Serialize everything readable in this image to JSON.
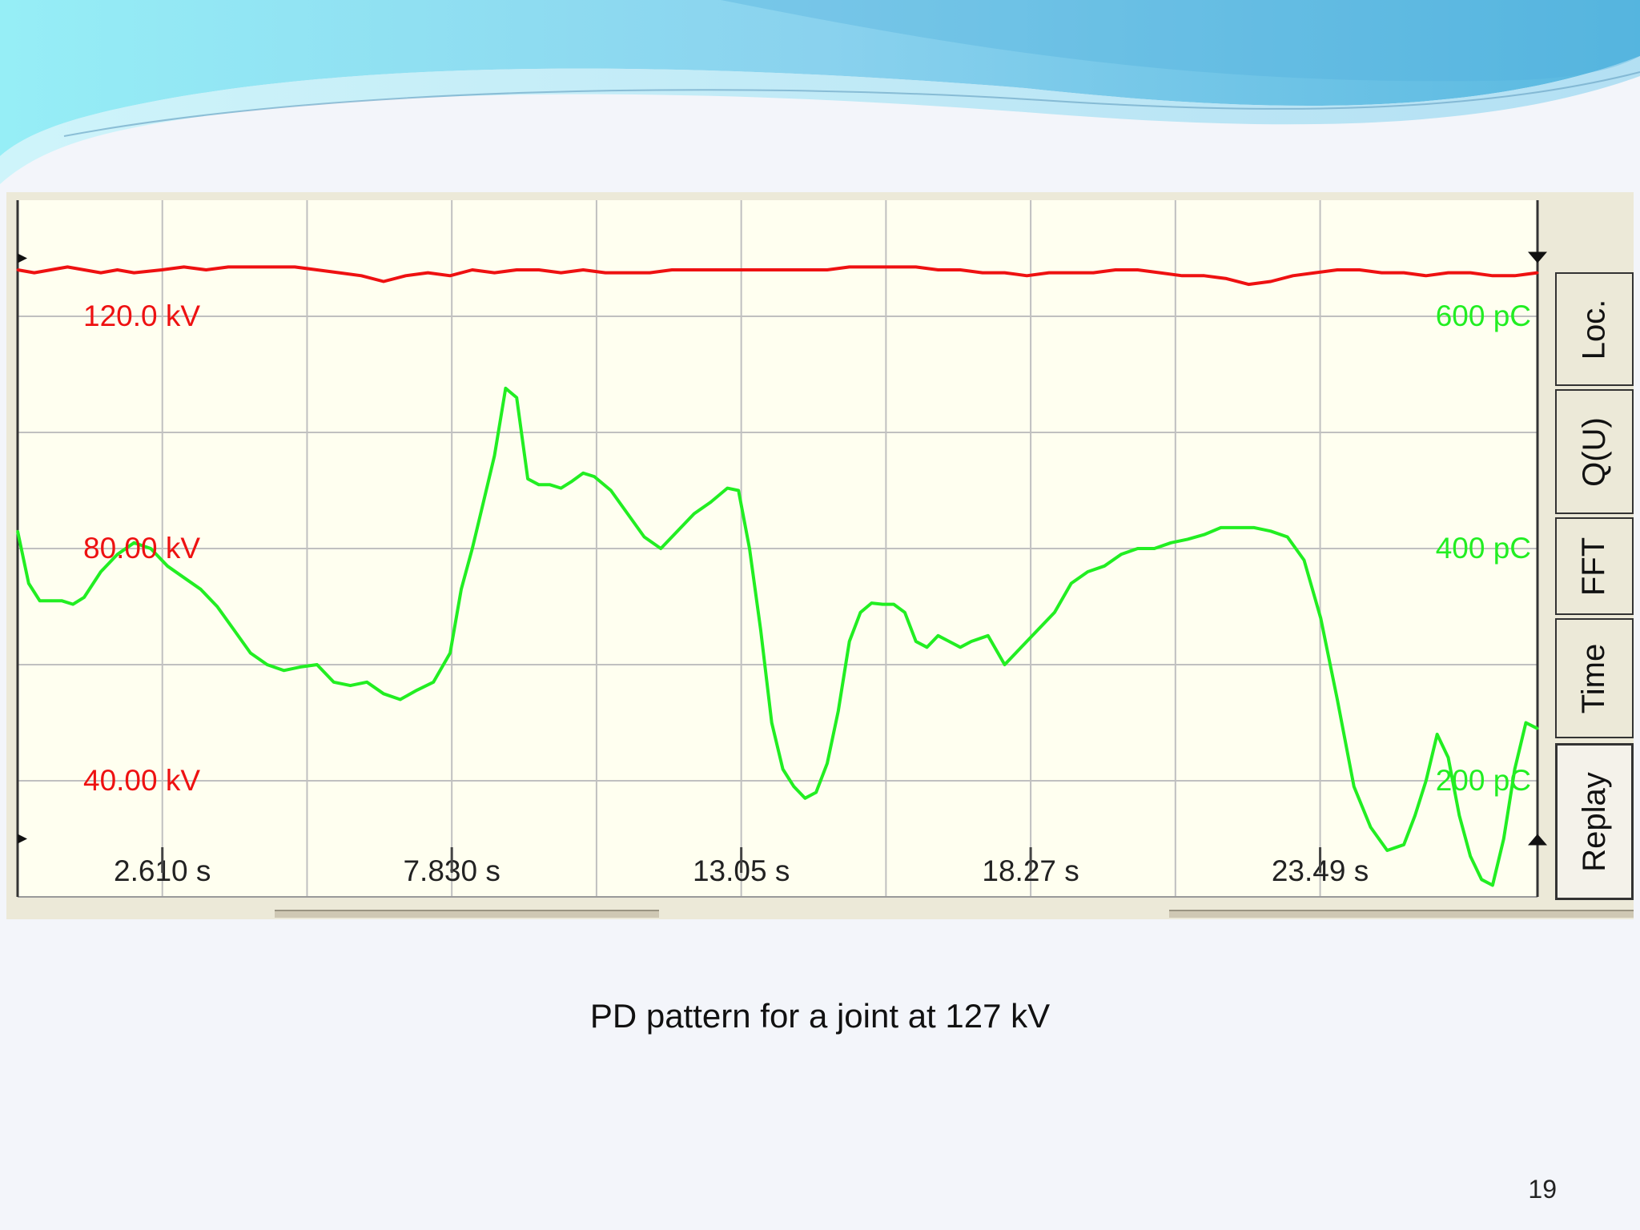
{
  "slide": {
    "caption": "PD pattern for a joint at 127 kV",
    "number": "19"
  },
  "tabs": [
    "Loc.",
    "Q(U)",
    "FFT",
    "Time",
    "Replay"
  ],
  "active_tab": "Replay",
  "colors": {
    "plot_background": "#fffff0",
    "grid": "#c0c0c0",
    "voltage": "#ee1111",
    "charge": "#22ee22",
    "axis_text": "#222222"
  },
  "chart_data": {
    "type": "line",
    "title": "",
    "xlabel": "",
    "ylabel": "",
    "grid": true,
    "legend": "none",
    "xlim": [
      0,
      27.41
    ],
    "x_ticks": [
      2.61,
      7.83,
      13.05,
      18.27,
      23.49
    ],
    "x_tick_labels": [
      "2.610 s",
      "7.830 s",
      "13.05 s",
      "18.27 s",
      "23.49 s"
    ],
    "left_axis": {
      "unit": "kV",
      "ylim": [
        20,
        140
      ],
      "ticks": [
        40,
        80,
        120
      ],
      "tick_labels": [
        "40.00 kV",
        "80.00 kV",
        "120.0 kV"
      ]
    },
    "right_axis": {
      "unit": "pC",
      "ylim": [
        100,
        700
      ],
      "ticks": [
        200,
        400,
        600
      ],
      "tick_labels": [
        "200 pC",
        "400 pC",
        "600 pC"
      ]
    },
    "series": [
      {
        "axis": "left",
        "color": "#ee1111",
        "x": [
          0,
          0.3,
          0.6,
          0.9,
          1.2,
          1.5,
          1.8,
          2.1,
          2.6,
          3.0,
          3.4,
          3.8,
          4.2,
          4.6,
          5.0,
          5.4,
          5.8,
          6.2,
          6.6,
          7.0,
          7.4,
          7.8,
          8.2,
          8.6,
          9.0,
          9.4,
          9.8,
          10.2,
          10.6,
          11.0,
          11.4,
          11.8,
          12.2,
          12.6,
          13.0,
          13.4,
          13.8,
          14.2,
          14.6,
          15.0,
          15.4,
          15.8,
          16.2,
          16.6,
          17.0,
          17.4,
          17.8,
          18.2,
          18.6,
          19.0,
          19.4,
          19.8,
          20.2,
          20.6,
          21.0,
          21.4,
          21.8,
          22.2,
          22.6,
          23.0,
          23.4,
          23.8,
          24.2,
          24.6,
          25.0,
          25.4,
          25.8,
          26.2,
          26.6,
          27.0,
          27.41
        ],
        "values": [
          128.0,
          127.5,
          128.0,
          128.5,
          128.0,
          127.5,
          128.0,
          127.5,
          128.0,
          128.5,
          128.0,
          128.5,
          128.5,
          128.5,
          128.5,
          128.0,
          127.5,
          127.0,
          126.0,
          127.0,
          127.5,
          127.0,
          128.0,
          127.5,
          128.0,
          128.0,
          127.5,
          128.0,
          127.5,
          127.5,
          127.5,
          128.0,
          128.0,
          128.0,
          128.0,
          128.0,
          128.0,
          128.0,
          128.0,
          128.5,
          128.5,
          128.5,
          128.5,
          128.0,
          128.0,
          127.5,
          127.5,
          127.0,
          127.5,
          127.5,
          127.5,
          128.0,
          128.0,
          127.5,
          127.0,
          127.0,
          126.5,
          125.5,
          126.0,
          127.0,
          127.5,
          128.0,
          128.0,
          127.5,
          127.5,
          127.0,
          127.5,
          127.5,
          127.0,
          127.0,
          127.5
        ]
      },
      {
        "axis": "right",
        "color": "#22ee22",
        "x": [
          0,
          0.2,
          0.4,
          0.6,
          0.8,
          1.0,
          1.2,
          1.5,
          1.8,
          2.1,
          2.4,
          2.7,
          3.0,
          3.3,
          3.6,
          3.9,
          4.2,
          4.5,
          4.8,
          5.1,
          5.4,
          5.7,
          6.0,
          6.3,
          6.6,
          6.9,
          7.2,
          7.5,
          7.8,
          8.0,
          8.2,
          8.4,
          8.6,
          8.8,
          9.0,
          9.2,
          9.4,
          9.6,
          9.8,
          10.0,
          10.2,
          10.4,
          10.7,
          11.0,
          11.3,
          11.6,
          11.9,
          12.2,
          12.5,
          12.8,
          13.0,
          13.2,
          13.4,
          13.6,
          13.8,
          14.0,
          14.2,
          14.4,
          14.6,
          14.8,
          15.0,
          15.2,
          15.4,
          15.6,
          15.8,
          16.0,
          16.2,
          16.4,
          16.6,
          16.8,
          17.0,
          17.2,
          17.5,
          17.8,
          18.1,
          18.4,
          18.7,
          19.0,
          19.3,
          19.6,
          19.9,
          20.2,
          20.5,
          20.8,
          21.1,
          21.4,
          21.7,
          22.0,
          22.3,
          22.6,
          22.9,
          23.2,
          23.5,
          23.8,
          24.1,
          24.4,
          24.7,
          25.0,
          25.2,
          25.4,
          25.6,
          25.8,
          26.0,
          26.2,
          26.4,
          26.6,
          26.8,
          27.0,
          27.2,
          27.41
        ],
        "values": [
          415,
          370,
          355,
          355,
          355,
          352,
          358,
          380,
          395,
          405,
          400,
          385,
          375,
          365,
          350,
          330,
          310,
          300,
          295,
          298,
          300,
          285,
          282,
          285,
          275,
          270,
          278,
          285,
          310,
          365,
          400,
          440,
          480,
          538,
          530,
          460,
          455,
          455,
          452,
          458,
          465,
          462,
          450,
          430,
          410,
          400,
          415,
          430,
          440,
          452,
          450,
          400,
          330,
          250,
          210,
          195,
          185,
          190,
          215,
          260,
          320,
          345,
          353,
          352,
          352,
          345,
          320,
          315,
          325,
          320,
          315,
          320,
          325,
          300,
          315,
          330,
          345,
          370,
          380,
          385,
          395,
          400,
          400,
          405,
          408,
          412,
          418,
          418,
          418,
          415,
          410,
          390,
          340,
          270,
          195,
          160,
          140,
          145,
          170,
          200,
          240,
          220,
          170,
          135,
          115,
          110,
          150,
          210,
          250,
          245
        ]
      }
    ]
  }
}
